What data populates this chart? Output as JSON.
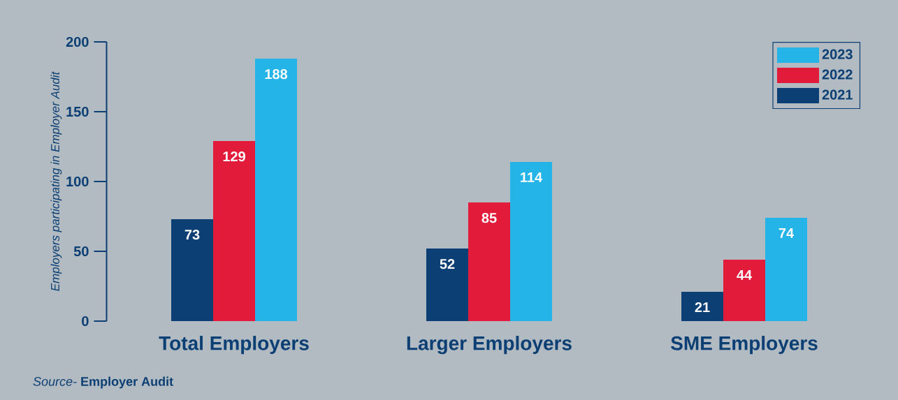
{
  "chart_data": {
    "type": "bar",
    "categories": [
      "Total Employers",
      "Larger Employers",
      "SME Employers"
    ],
    "series": [
      {
        "name": "2021",
        "color": "#0c3f73",
        "values": [
          73,
          52,
          21
        ]
      },
      {
        "name": "2022",
        "color": "#e31b3a",
        "values": [
          129,
          85,
          44
        ]
      },
      {
        "name": "2023",
        "color": "#24b4e8",
        "values": [
          188,
          114,
          74
        ]
      }
    ],
    "ylabel": "Employers participating in Employer Audit",
    "ylim": [
      0,
      200
    ],
    "yticks": [
      0,
      50,
      100,
      150,
      200
    ],
    "data_labels": true,
    "legend": "top right",
    "annotations": [
      "*Source-* **Employer Audit**"
    ]
  }
}
